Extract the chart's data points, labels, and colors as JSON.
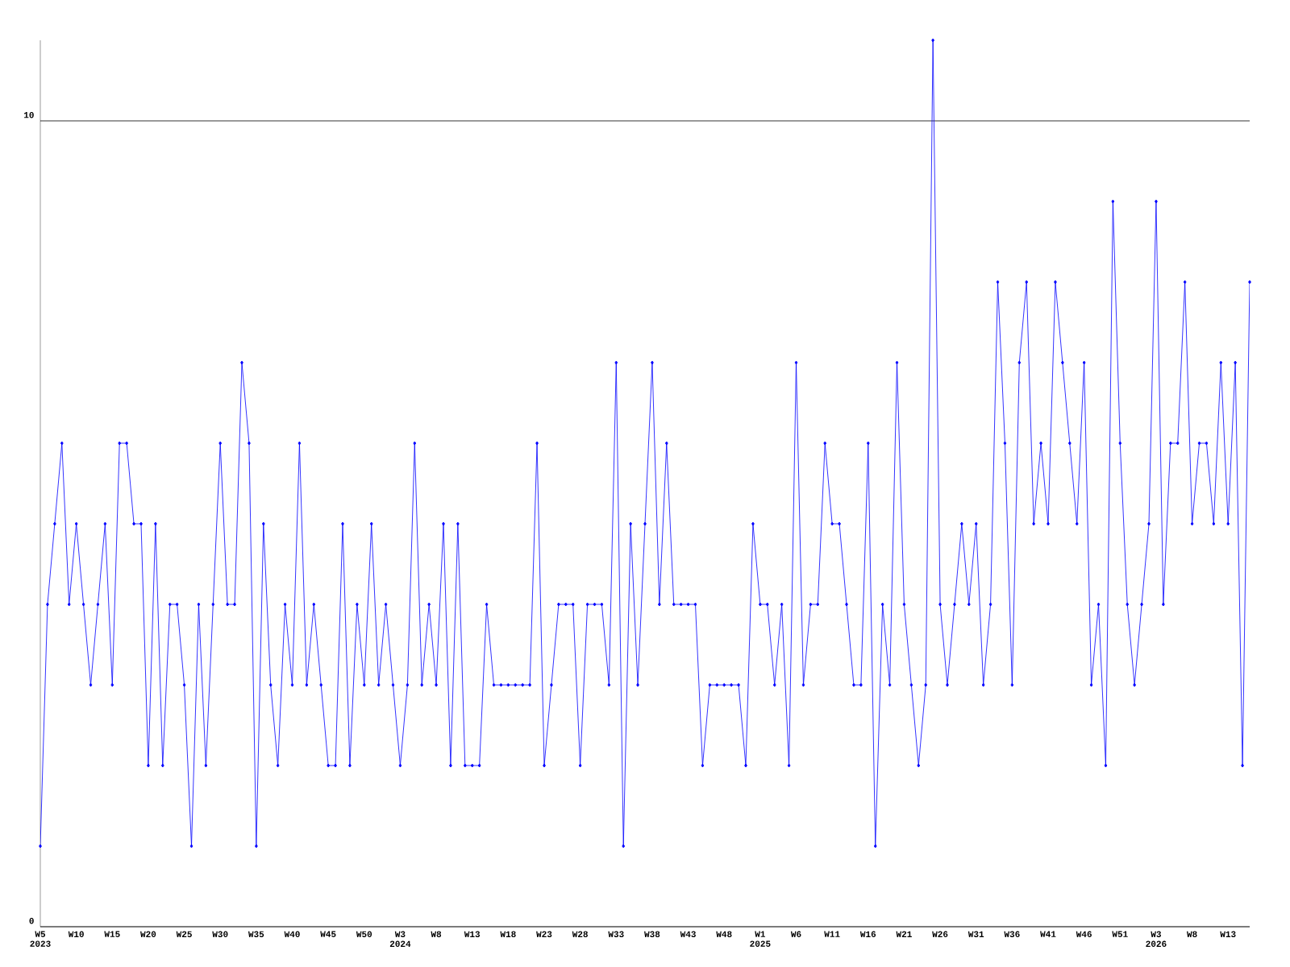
{
  "chart_data": {
    "type": "line",
    "categories": [
      "W5 2023",
      null,
      null,
      null,
      null,
      "W10",
      null,
      null,
      null,
      null,
      "W15",
      null,
      null,
      null,
      null,
      "W20",
      null,
      null,
      null,
      null,
      "W25",
      null,
      null,
      null,
      null,
      "W30",
      null,
      null,
      null,
      null,
      "W35",
      null,
      null,
      null,
      null,
      "W40",
      null,
      null,
      null,
      null,
      "W45",
      null,
      null,
      null,
      null,
      "W50",
      null,
      null,
      null,
      null,
      "W3 2024",
      null,
      null,
      null,
      null,
      "W8",
      null,
      null,
      null,
      null,
      "W13",
      null,
      null,
      null,
      null,
      "W18",
      null,
      null,
      null,
      null,
      "W23",
      null,
      null,
      null,
      null,
      "W28",
      null,
      null,
      null,
      null,
      "W33",
      null,
      null,
      null,
      null,
      "W38",
      null,
      null,
      null,
      null,
      "W43",
      null,
      null,
      null,
      null,
      "W48",
      null,
      null,
      null,
      null,
      "W1 2025",
      null,
      null,
      null,
      null,
      "W6",
      null,
      null,
      null,
      null,
      "W11",
      null,
      null,
      null,
      null,
      "W16",
      null,
      null,
      null,
      null,
      "W21",
      null,
      null,
      null,
      null,
      "W26",
      null,
      null,
      null,
      null,
      "W31",
      null,
      null,
      null,
      null,
      "W36",
      null,
      null,
      null,
      null,
      "W41",
      null,
      null,
      null,
      null,
      "W46",
      null,
      null,
      null,
      null,
      "W51",
      null,
      null,
      null,
      null,
      "W3 2026",
      null,
      null,
      null,
      null,
      "W8",
      null,
      null,
      null,
      null,
      "W13",
      null,
      null,
      null
    ],
    "values": [
      1,
      4,
      5,
      6,
      4,
      5,
      4,
      3,
      4,
      5,
      3,
      6,
      6,
      5,
      5,
      2,
      5,
      2,
      4,
      4,
      3,
      1,
      4,
      2,
      4,
      6,
      4,
      4,
      7,
      6,
      1,
      5,
      3,
      2,
      4,
      3,
      6,
      3,
      4,
      3,
      2,
      2,
      5,
      2,
      4,
      3,
      5,
      3,
      4,
      3,
      2,
      3,
      6,
      3,
      4,
      3,
      5,
      2,
      5,
      2,
      2,
      2,
      4,
      3,
      3,
      3,
      3,
      3,
      3,
      6,
      2,
      3,
      4,
      4,
      4,
      2,
      4,
      4,
      4,
      3,
      7,
      1,
      5,
      3,
      5,
      7,
      4,
      6,
      4,
      4,
      4,
      4,
      2,
      3,
      3,
      3,
      3,
      3,
      2,
      5,
      4,
      4,
      3,
      4,
      2,
      7,
      3,
      4,
      4,
      6,
      5,
      5,
      4,
      3,
      3,
      6,
      1,
      4,
      3,
      7,
      4,
      3,
      2,
      3,
      11,
      4,
      3,
      4,
      5,
      4,
      5,
      3,
      4,
      8,
      6,
      3,
      7,
      8,
      5,
      6,
      5,
      8,
      7,
      6,
      5,
      7,
      3,
      4,
      2,
      9,
      6,
      4,
      3,
      4,
      5,
      9,
      4,
      6,
      6,
      8,
      5,
      6,
      6,
      5,
      7,
      5,
      7,
      2,
      8
    ],
    "color": "#0000ff",
    "marker": "diamond",
    "line_style": "solid",
    "ylim": [
      0,
      11
    ],
    "yticks": [
      0,
      10
    ],
    "grid": "y"
  }
}
